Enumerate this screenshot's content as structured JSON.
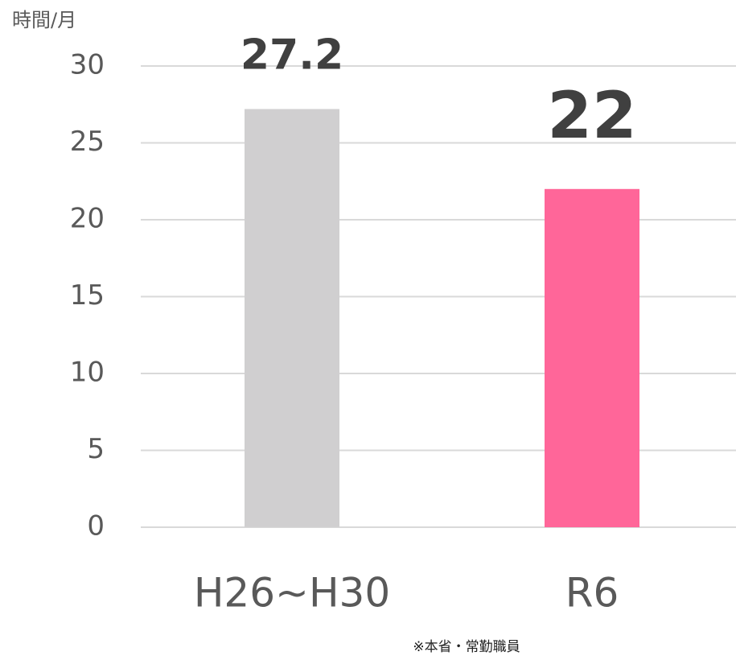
{
  "chart_data": {
    "type": "bar",
    "y_axis_label": "時間/月",
    "note": "※本省・常勤職員",
    "categories": [
      "H26~H30",
      "R6"
    ],
    "values": [
      27.2,
      22
    ],
    "colors": [
      "#d0cfd0",
      "#ff6699"
    ],
    "ylim": [
      0,
      30
    ],
    "yticks": [
      0,
      5,
      10,
      15,
      20,
      25,
      30
    ],
    "grid": true
  }
}
